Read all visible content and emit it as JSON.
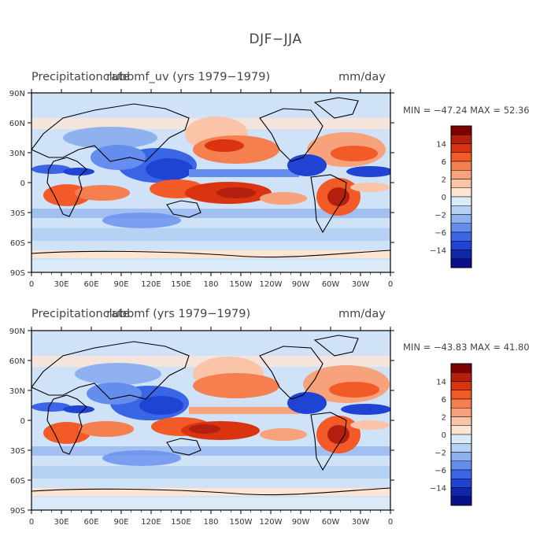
{
  "figure": {
    "title": "DJF−JJA"
  },
  "panels": [
    {
      "variable": "Precipitation rate",
      "case": "clubbmf_uv (yrs 1979−1979)",
      "units": "mm/day",
      "stats": "MIN = −47.24  MAX =  52.36"
    },
    {
      "variable": "Precipitation rate",
      "case": "clubbmf (yrs 1979−1979)",
      "units": "mm/day",
      "stats": "MIN = −43.83  MAX =  41.80"
    }
  ],
  "axes": {
    "lon_ticks": [
      "0",
      "30E",
      "60E",
      "90E",
      "120E",
      "150E",
      "180",
      "150W",
      "120W",
      "90W",
      "60W",
      "30W",
      "0"
    ],
    "lat_ticks": [
      "90N",
      "60N",
      "30N",
      "0",
      "30S",
      "60S",
      "90S"
    ],
    "lon_range": [
      0,
      360
    ],
    "lat_range": [
      90,
      -90
    ]
  },
  "colorbar": {
    "labels": [
      "14",
      "6",
      "2",
      "0",
      "−2",
      "−6",
      "−14"
    ],
    "colors": [
      "#7f0000",
      "#b3200f",
      "#d9340f",
      "#f25a28",
      "#f57f4f",
      "#f7a27a",
      "#fac4a8",
      "#fde5d4",
      "#dbeaf7",
      "#b5d1f3",
      "#8fb1ef",
      "#658ded",
      "#3a66e6",
      "#1f44d4",
      "#0f27a8",
      "#0a0f8a"
    ]
  },
  "colors": {
    "strong_pos": "#b3200f",
    "pos": "#f57f4f",
    "weak_pos": "#fac4a8",
    "zero": "#fde5d4",
    "weak_neg": "#cfe2f7",
    "neg": "#658ded",
    "strong_neg": "#1f44d4"
  }
}
